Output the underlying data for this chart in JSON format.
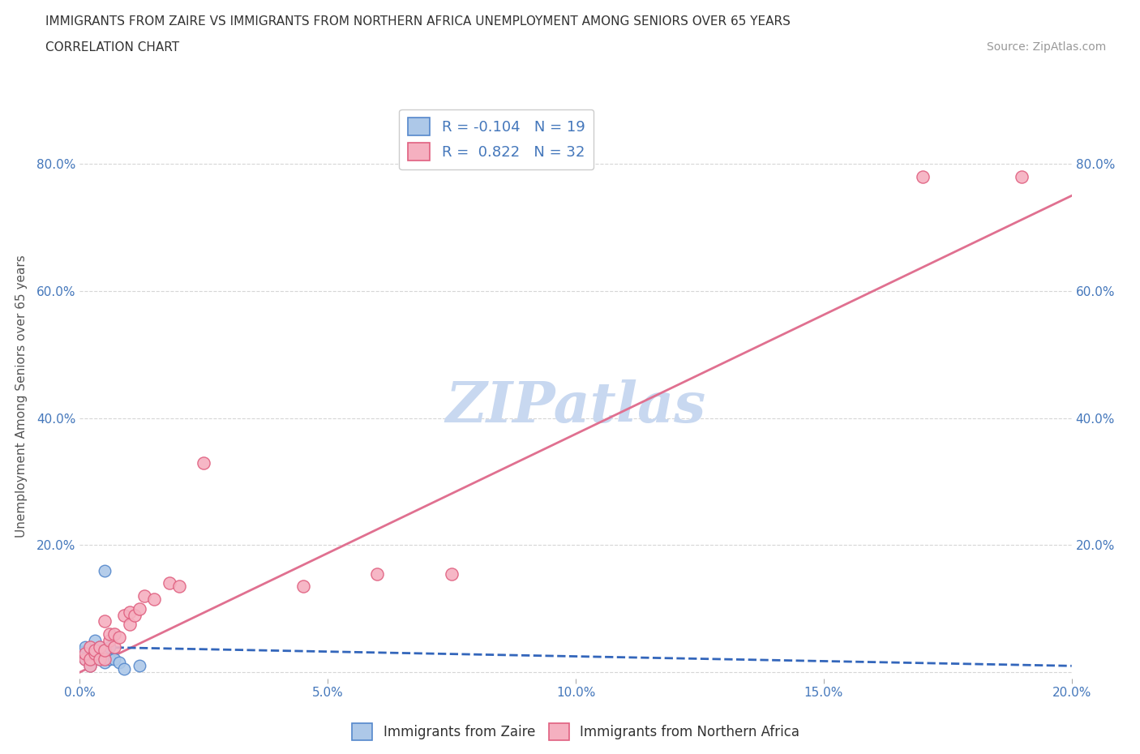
{
  "title_line1": "IMMIGRANTS FROM ZAIRE VS IMMIGRANTS FROM NORTHERN AFRICA UNEMPLOYMENT AMONG SENIORS OVER 65 YEARS",
  "title_line2": "CORRELATION CHART",
  "source_text": "Source: ZipAtlas.com",
  "ylabel": "Unemployment Among Seniors over 65 years",
  "xlim": [
    0.0,
    0.2
  ],
  "ylim": [
    -0.01,
    0.88
  ],
  "zaire_color": "#adc8e8",
  "zaire_edge_color": "#5588cc",
  "northern_africa_color": "#f5b0c0",
  "northern_africa_edge_color": "#e06080",
  "trend_zaire_color": "#3366bb",
  "trend_northern_africa_color": "#e07090",
  "R_zaire": -0.104,
  "N_zaire": 19,
  "R_northern": 0.822,
  "N_northern": 32,
  "watermark": "ZIPatlas",
  "watermark_color": "#c8d8f0",
  "zaire_x": [
    0.001,
    0.001,
    0.001,
    0.002,
    0.002,
    0.002,
    0.003,
    0.003,
    0.003,
    0.004,
    0.004,
    0.005,
    0.005,
    0.006,
    0.006,
    0.007,
    0.008,
    0.009,
    0.012
  ],
  "zaire_y": [
    0.02,
    0.03,
    0.04,
    0.01,
    0.02,
    0.04,
    0.02,
    0.03,
    0.05,
    0.02,
    0.04,
    0.015,
    0.16,
    0.02,
    0.04,
    0.02,
    0.015,
    0.005,
    0.01
  ],
  "northern_x": [
    0.001,
    0.001,
    0.002,
    0.002,
    0.002,
    0.003,
    0.003,
    0.004,
    0.004,
    0.005,
    0.005,
    0.005,
    0.006,
    0.006,
    0.007,
    0.007,
    0.008,
    0.009,
    0.01,
    0.01,
    0.011,
    0.012,
    0.013,
    0.015,
    0.018,
    0.02,
    0.025,
    0.045,
    0.06,
    0.075,
    0.17,
    0.19
  ],
  "northern_y": [
    0.02,
    0.03,
    0.01,
    0.02,
    0.04,
    0.03,
    0.035,
    0.02,
    0.04,
    0.02,
    0.035,
    0.08,
    0.05,
    0.06,
    0.04,
    0.06,
    0.055,
    0.09,
    0.075,
    0.095,
    0.09,
    0.1,
    0.12,
    0.115,
    0.14,
    0.135,
    0.33,
    0.135,
    0.155,
    0.155,
    0.78,
    0.78
  ],
  "northern_trend_x": [
    0.0,
    0.2
  ],
  "northern_trend_y": [
    0.0,
    0.75
  ],
  "zaire_trend_x": [
    0.0,
    0.2
  ],
  "zaire_trend_y": [
    0.04,
    0.01
  ],
  "background_color": "#ffffff",
  "grid_color": "#cccccc",
  "tick_color": "#4477bb",
  "label_color": "#555555"
}
